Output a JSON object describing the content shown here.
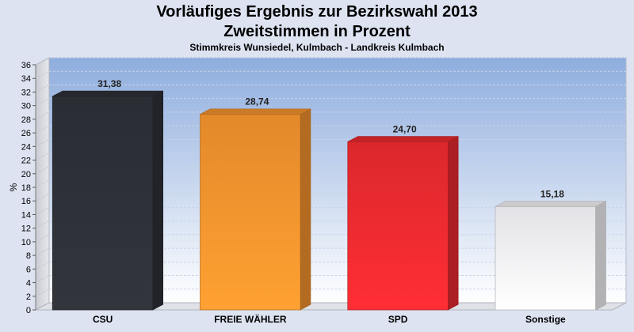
{
  "header": {
    "title_line1": "Vorläufiges Ergebnis zur Bezirkswahl 2013",
    "title_line2": "Zweitstimmen in Prozent",
    "subtitle": "Stimmkreis Wunsiedel, Kulmbach - Landkreis Kulmbach"
  },
  "chart_data": {
    "type": "bar",
    "title": "Vorläufiges Ergebnis zur Bezirkswahl 2013 Zweitstimmen in Prozent",
    "subtitle": "Stimmkreis Wunsiedel, Kulmbach - Landkreis Kulmbach",
    "xlabel": "",
    "ylabel": "%",
    "ylim": [
      0,
      36
    ],
    "yticks": [
      0,
      2,
      4,
      6,
      8,
      10,
      12,
      14,
      16,
      18,
      20,
      22,
      24,
      26,
      28,
      30,
      32,
      34,
      36
    ],
    "grid": true,
    "categories": [
      "CSU",
      "FREIE WÄHLER",
      "SPD",
      "Sonstige"
    ],
    "values": [
      31.38,
      28.74,
      24.7,
      15.18
    ],
    "value_labels": [
      "31,38",
      "28,74",
      "24,70",
      "15,18"
    ],
    "colors": [
      "#2e3138",
      "#f7952e",
      "#ee2b30",
      "#f7f7fb"
    ]
  }
}
